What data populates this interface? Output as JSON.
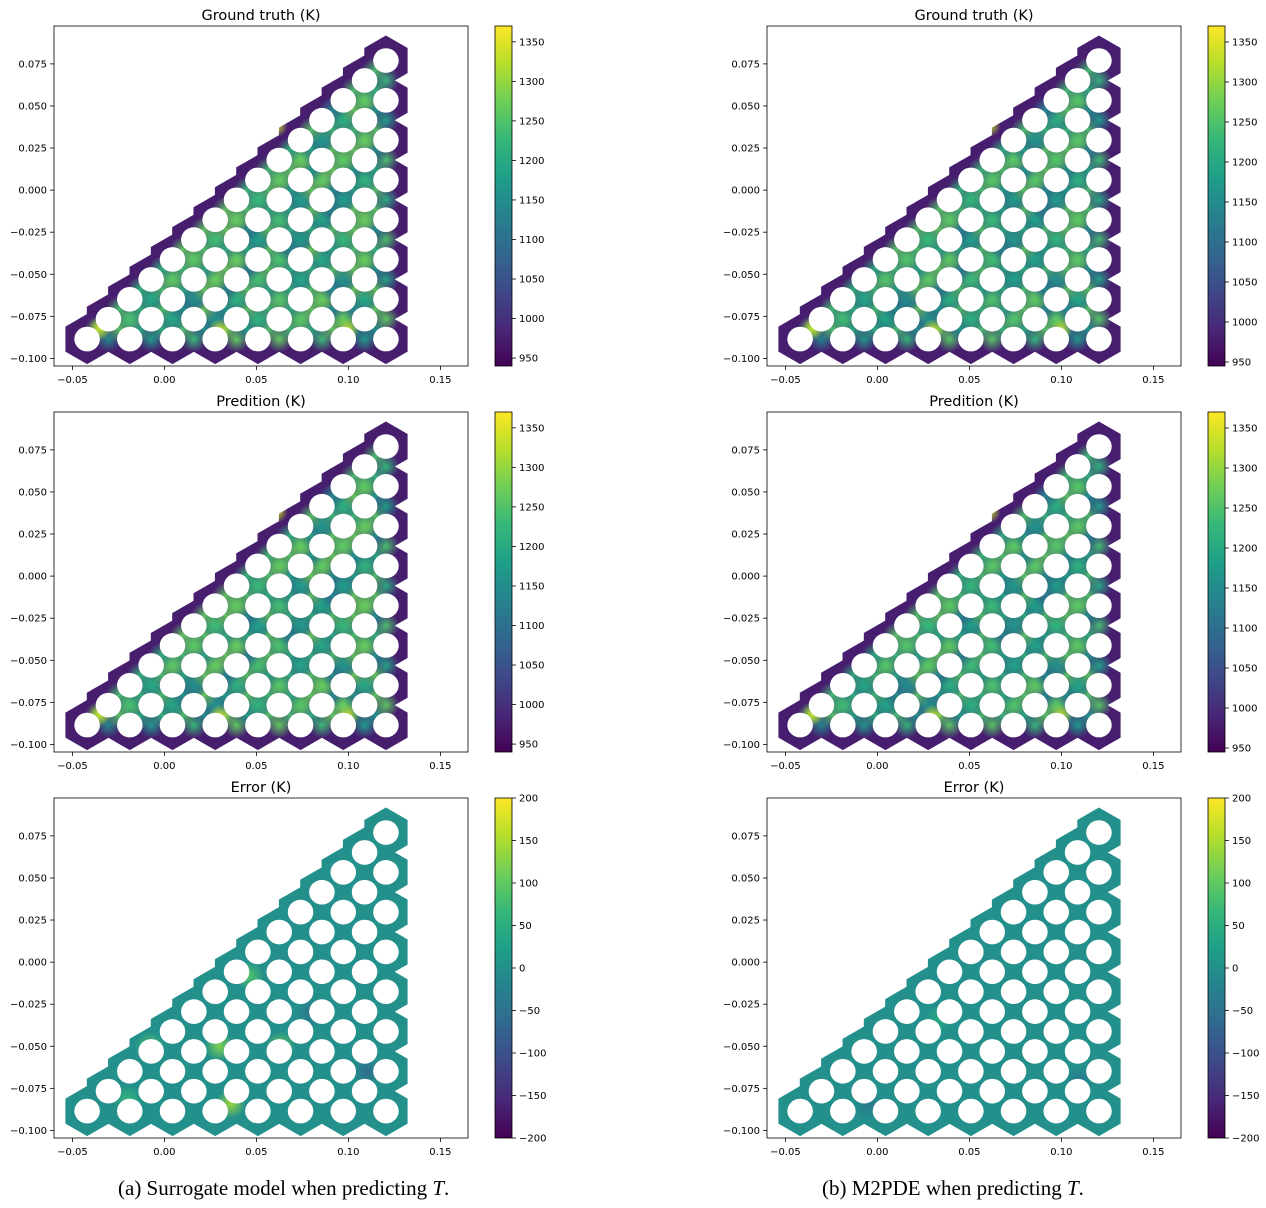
{
  "figure": {
    "columns": [
      {
        "caption_text": "(a) Surrogate model when predicting ",
        "caption_symbol": "T",
        "caption_end": "."
      },
      {
        "caption_text": "(b) M2PDE when predicting ",
        "caption_symbol": "T",
        "caption_end": "."
      }
    ]
  },
  "colormap": {
    "name": "viridis",
    "stops": [
      "#440154",
      "#482878",
      "#3e4989",
      "#31688e",
      "#26828e",
      "#1f9e89",
      "#35b779",
      "#6ece58",
      "#b5de2b",
      "#fde725"
    ]
  },
  "chart_data": [
    {
      "id": "a-ground-truth",
      "type": "heatmap",
      "title": "Ground truth (K)",
      "xlim": [
        -0.06,
        0.165
      ],
      "ylim": [
        -0.1045,
        0.0975
      ],
      "xticks": [
        -0.05,
        0.0,
        0.05,
        0.1,
        0.15
      ],
      "xtick_labels": [
        "−0.05",
        "0.00",
        "0.05",
        "0.10",
        "0.15"
      ],
      "yticks": [
        -0.1,
        -0.075,
        -0.05,
        -0.025,
        0.0,
        0.025,
        0.05,
        0.075
      ],
      "ytick_labels": [
        "−0.100",
        "−0.075",
        "−0.050",
        "−0.025",
        "0.000",
        "0.025",
        "0.050",
        "0.075"
      ],
      "colorbar": {
        "vmin": 940,
        "vmax": 1370,
        "ticks": [
          950,
          1000,
          1050,
          1100,
          1150,
          1200,
          1250,
          1300,
          1350
        ],
        "tick_labels": [
          "950",
          "1000",
          "1050",
          "1100",
          "1150",
          "1200",
          "1250",
          "1300",
          "1350"
        ]
      },
      "field": {
        "base": 975,
        "peak": 1340,
        "hot_spot_value": 1335,
        "kind": "temperature"
      }
    },
    {
      "id": "b-ground-truth",
      "type": "heatmap",
      "title": "Ground truth (K)",
      "xlim": [
        -0.06,
        0.165
      ],
      "ylim": [
        -0.1045,
        0.0975
      ],
      "xticks": [
        -0.05,
        0.0,
        0.05,
        0.1,
        0.15
      ],
      "xtick_labels": [
        "−0.05",
        "0.00",
        "0.05",
        "0.10",
        "0.15"
      ],
      "yticks": [
        -0.1,
        -0.075,
        -0.05,
        -0.025,
        0.0,
        0.025,
        0.05,
        0.075
      ],
      "ytick_labels": [
        "−0.100",
        "−0.075",
        "−0.050",
        "−0.025",
        "0.000",
        "0.025",
        "0.050",
        "0.075"
      ],
      "colorbar": {
        "vmin": 945,
        "vmax": 1370,
        "ticks": [
          950,
          1000,
          1050,
          1100,
          1150,
          1200,
          1250,
          1300,
          1350
        ],
        "tick_labels": [
          "950",
          "1000",
          "1050",
          "1100",
          "1150",
          "1200",
          "1250",
          "1300",
          "1350"
        ]
      },
      "field": {
        "base": 980,
        "peak": 1330,
        "hot_spot_value": 1335,
        "kind": "temperature"
      }
    },
    {
      "id": "a-prediction",
      "type": "heatmap",
      "title": "Predition (K)",
      "xlim": [
        -0.06,
        0.165
      ],
      "ylim": [
        -0.1045,
        0.0975
      ],
      "xticks": [
        -0.05,
        0.0,
        0.05,
        0.1,
        0.15
      ],
      "xtick_labels": [
        "−0.05",
        "0.00",
        "0.05",
        "0.10",
        "0.15"
      ],
      "yticks": [
        -0.1,
        -0.075,
        -0.05,
        -0.025,
        0.0,
        0.025,
        0.05,
        0.075
      ],
      "ytick_labels": [
        "−0.100",
        "−0.075",
        "−0.050",
        "−0.025",
        "0.000",
        "0.025",
        "0.050",
        "0.075"
      ],
      "colorbar": {
        "vmin": 940,
        "vmax": 1370,
        "ticks": [
          950,
          1000,
          1050,
          1100,
          1150,
          1200,
          1250,
          1300,
          1350
        ],
        "tick_labels": [
          "950",
          "1000",
          "1050",
          "1100",
          "1150",
          "1200",
          "1250",
          "1300",
          "1350"
        ]
      },
      "field": {
        "base": 975,
        "peak": 1340,
        "hot_spot_value": 1335,
        "kind": "temperature"
      }
    },
    {
      "id": "b-prediction",
      "type": "heatmap",
      "title": "Predition (K)",
      "xlim": [
        -0.06,
        0.165
      ],
      "ylim": [
        -0.1045,
        0.0975
      ],
      "xticks": [
        -0.05,
        0.0,
        0.05,
        0.1,
        0.15
      ],
      "xtick_labels": [
        "−0.05",
        "0.00",
        "0.05",
        "0.10",
        "0.15"
      ],
      "yticks": [
        -0.1,
        -0.075,
        -0.05,
        -0.025,
        0.0,
        0.025,
        0.05,
        0.075
      ],
      "ytick_labels": [
        "−0.100",
        "−0.075",
        "−0.050",
        "−0.025",
        "0.000",
        "0.025",
        "0.050",
        "0.075"
      ],
      "colorbar": {
        "vmin": 945,
        "vmax": 1370,
        "ticks": [
          950,
          1000,
          1050,
          1100,
          1150,
          1200,
          1250,
          1300,
          1350
        ],
        "tick_labels": [
          "950",
          "1000",
          "1050",
          "1100",
          "1150",
          "1200",
          "1250",
          "1300",
          "1350"
        ]
      },
      "field": {
        "base": 980,
        "peak": 1330,
        "hot_spot_value": 1335,
        "kind": "temperature"
      }
    },
    {
      "id": "a-error",
      "type": "heatmap",
      "title": "Error (K)",
      "xlim": [
        -0.06,
        0.165
      ],
      "ylim": [
        -0.1045,
        0.0975
      ],
      "xticks": [
        -0.05,
        0.0,
        0.05,
        0.1,
        0.15
      ],
      "xtick_labels": [
        "−0.05",
        "0.00",
        "0.05",
        "0.10",
        "0.15"
      ],
      "yticks": [
        -0.1,
        -0.075,
        -0.05,
        -0.025,
        0.0,
        0.025,
        0.05,
        0.075
      ],
      "ytick_labels": [
        "−0.100",
        "−0.075",
        "−0.050",
        "−0.025",
        "0.000",
        "0.025",
        "0.050",
        "0.075"
      ],
      "colorbar": {
        "vmin": -200,
        "vmax": 200,
        "ticks": [
          -200,
          -150,
          -100,
          -50,
          0,
          50,
          100,
          150,
          200
        ],
        "tick_labels": [
          "−200",
          "−150",
          "−100",
          "−50",
          "0",
          "50",
          "100",
          "150",
          "200"
        ]
      },
      "field": {
        "base": 0,
        "kind": "error",
        "spots": [
          {
            "x": 0.03,
            "y": -0.05,
            "value": 120
          },
          {
            "x": 0.063,
            "y": -0.05,
            "value": 110
          },
          {
            "x": -0.008,
            "y": -0.05,
            "value": 90
          },
          {
            "x": 0.036,
            "y": -0.084,
            "value": 140
          },
          {
            "x": 0.03,
            "y": 0.012,
            "value": 80
          },
          {
            "x": 0.046,
            "y": -0.008,
            "value": 90
          },
          {
            "x": -0.02,
            "y": -0.082,
            "value": 70
          },
          {
            "x": 0.11,
            "y": -0.065,
            "value": -60
          },
          {
            "x": 0.08,
            "y": -0.03,
            "value": -50
          }
        ]
      }
    },
    {
      "id": "b-error",
      "type": "heatmap",
      "title": "Error (K)",
      "xlim": [
        -0.06,
        0.165
      ],
      "ylim": [
        -0.1045,
        0.0975
      ],
      "xticks": [
        -0.05,
        0.0,
        0.05,
        0.1,
        0.15
      ],
      "xtick_labels": [
        "−0.05",
        "0.00",
        "0.05",
        "0.10",
        "0.15"
      ],
      "yticks": [
        -0.1,
        -0.075,
        -0.05,
        -0.025,
        0.0,
        0.025,
        0.05,
        0.075
      ],
      "ytick_labels": [
        "−0.100",
        "−0.075",
        "−0.050",
        "−0.025",
        "0.000",
        "0.025",
        "0.050",
        "0.075"
      ],
      "colorbar": {
        "vmin": -200,
        "vmax": 200,
        "ticks": [
          -200,
          -150,
          -100,
          -50,
          0,
          50,
          100,
          150,
          200
        ],
        "tick_labels": [
          "−200",
          "−150",
          "−100",
          "−50",
          "0",
          "50",
          "100",
          "150",
          "200"
        ]
      },
      "field": {
        "base": 0,
        "kind": "error",
        "spots": [
          {
            "x": 0.033,
            "y": -0.034,
            "value": 40
          },
          {
            "x": -0.005,
            "y": -0.085,
            "value": -40
          },
          {
            "x": 0.11,
            "y": -0.07,
            "value": -35
          }
        ]
      }
    }
  ]
}
